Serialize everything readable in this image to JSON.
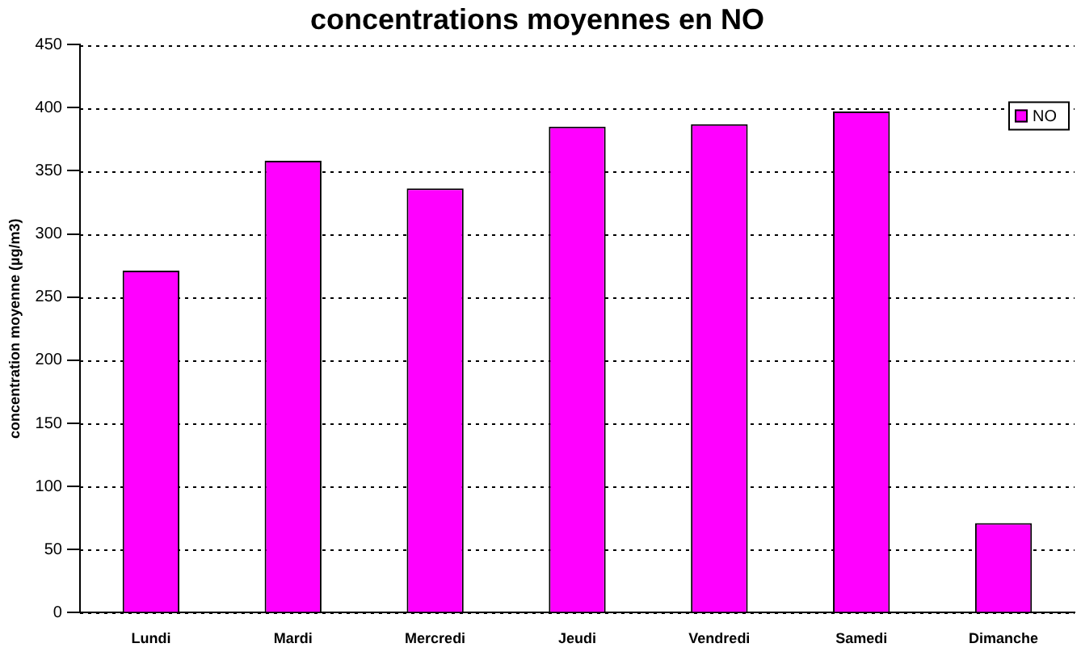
{
  "chart_data": {
    "type": "bar",
    "title": "concentrations moyennes en NO",
    "ylabel": "concentration moyenne (µg/m3)",
    "categories": [
      "Lundi",
      "Mardi",
      "Mercredi",
      "Jeudi",
      "Vendredi",
      "Samedi",
      "Dimanche"
    ],
    "series": [
      {
        "name": "NO",
        "color": "#ff00ff",
        "values": [
          271,
          358,
          336,
          385,
          387,
          397,
          71
        ]
      }
    ],
    "ylim": [
      0,
      450
    ],
    "yticks": [
      0,
      50,
      100,
      150,
      200,
      250,
      300,
      350,
      400,
      450
    ],
    "grid": "y",
    "legend": "top right"
  }
}
